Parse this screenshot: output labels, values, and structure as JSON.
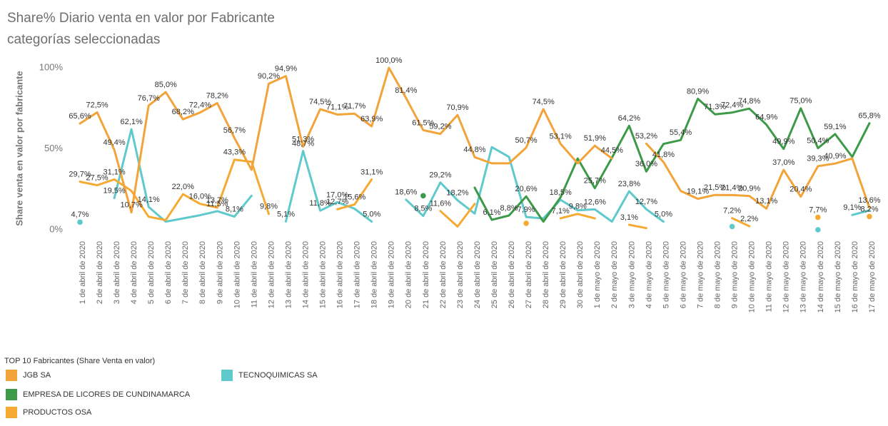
{
  "chart_data": {
    "type": "line",
    "title": "Share% Diario venta en valor por Fabricante",
    "subtitle": "categorías seleccionadas",
    "y_label": "Share venta en valor por fabricante",
    "legend_title": "TOP 10 Fabricantes (Share Venta en valor)",
    "grid": false,
    "ylim": [
      -3,
      102
    ],
    "yticks": [
      {
        "value": 0,
        "label": "0%"
      },
      {
        "value": 50,
        "label": "50%"
      },
      {
        "value": 100,
        "label": "100%"
      }
    ],
    "categories": [
      "1 de abril de 2020",
      "2 de abril de 2020",
      "3 de abril de 2020",
      "4 de abril de 2020",
      "5 de abril de 2020",
      "6 de abril de 2020",
      "7 de abril de 2020",
      "8 de abril de 2020",
      "9 de abril de 2020",
      "10 de abril de 2020",
      "11 de abril de 2020",
      "12 de abril de 2020",
      "13 de abril de 2020",
      "14 de abril de 2020",
      "15 de abril de 2020",
      "16 de abril de 2020",
      "17 de abril de 2020",
      "18 de abril de 2020",
      "19 de abril de 2020",
      "20 de abril de 2020",
      "21 de abril de 2020",
      "22 de abril de 2020",
      "23 de abril de 2020",
      "24 de abril de 2020",
      "25 de abril de 2020",
      "26 de abril de 2020",
      "27 de abril de 2020",
      "28 de abril de 2020",
      "29 de abril de 2020",
      "30 de abril de 2020",
      "1 de mayo de 2020",
      "2 de mayo de 2020",
      "3 de mayo de 2020",
      "4 de mayo de 2020",
      "5 de mayo de 2020",
      "6 de mayo de 2020",
      "7 de mayo de 2020",
      "8 de mayo de 2020",
      "9 de mayo de 2020",
      "10 de mayo de 2020",
      "11 de mayo de 2020",
      "12 de mayo de 2020",
      "13 de mayo de 2020",
      "14 de mayo de 2020",
      "15 de mayo de 2020",
      "16 de mayo de 2020",
      "17 de mayo de 2020"
    ],
    "series": [
      {
        "name": "JGB SA",
        "color": "#f2a43a",
        "values": [
          65.6,
          72.5,
          49.4,
          10.7,
          76.7,
          85.0,
          68.2,
          72.4,
          78.2,
          56.7,
          37,
          90.2,
          94.9,
          51.3,
          74.5,
          71.1,
          71.7,
          63.9,
          100.0,
          81.4,
          61.5,
          59.2,
          70.9,
          44.8,
          41,
          41,
          50.7,
          74.5,
          53.1,
          41,
          51.9,
          44,
          null,
          53.2,
          41.8,
          24,
          19.1,
          21.5,
          21.4,
          20.9,
          13.1,
          37.0,
          20.4,
          39.3,
          40.9,
          44,
          13.6
        ],
        "value_labels": [
          "65,6%",
          "72,5%",
          "49,4%",
          "10,7%",
          "76,7%",
          "85,0%",
          "68,2%",
          "72,4%",
          "78,2%",
          "56,7%",
          null,
          "90,2%",
          "94,9%",
          "51,3%",
          "74,5%",
          "71,1%",
          "71,7%",
          "63,9%",
          "100,0%",
          "81,4%",
          "61,5%",
          "59,2%",
          "70,9%",
          "44,8%",
          null,
          null,
          "50,7%",
          "74,5%",
          "53,1%",
          null,
          "51,9%",
          null,
          null,
          "53,2%",
          "41,8%",
          null,
          "19,1%",
          "21,5%",
          "21,4%",
          "20,9%",
          "13,1%",
          "37,0%",
          "20,4%",
          "39,3%",
          "40,9%",
          null,
          "13,6%"
        ]
      },
      {
        "name": "EMPRESA DE LICORES DE CUNDINAMARCA",
        "color": "#3c9a48",
        "values": [
          null,
          null,
          null,
          null,
          null,
          null,
          null,
          null,
          null,
          null,
          null,
          null,
          null,
          null,
          null,
          null,
          null,
          null,
          null,
          null,
          21,
          null,
          null,
          26,
          6.1,
          8.8,
          20.6,
          5,
          20,
          44,
          25.7,
          44.5,
          64.2,
          36.0,
          53,
          55.4,
          80.9,
          71.3,
          72.4,
          74.8,
          64.9,
          49.9,
          75.0,
          50.4,
          59.1,
          45,
          65.8
        ],
        "value_labels": [
          null,
          null,
          null,
          null,
          null,
          null,
          null,
          null,
          null,
          null,
          null,
          null,
          null,
          null,
          null,
          null,
          null,
          null,
          null,
          null,
          null,
          null,
          null,
          null,
          "6,1%",
          "8,8%",
          "20,6%",
          null,
          null,
          null,
          "25,7%",
          "44,5%",
          "64,2%",
          "36,0%",
          null,
          "55,4%",
          "80,9%",
          "71,3%",
          "72,4%",
          "74,8%",
          "64,9%",
          "49,9%",
          "75,0%",
          "50,4%",
          "59,1%",
          null,
          "65,8%"
        ]
      },
      {
        "name": "PRODUCTOS OSA",
        "color": "#f5ab33",
        "values": [
          29.7,
          27.5,
          31.1,
          24,
          8,
          6,
          22.0,
          16.0,
          13.7,
          43.3,
          42,
          9.8,
          null,
          null,
          null,
          12.7,
          15.6,
          31.1,
          null,
          null,
          null,
          11.6,
          2,
          16,
          null,
          null,
          4,
          null,
          7.1,
          9.8,
          7,
          null,
          3.1,
          1,
          null,
          null,
          null,
          null,
          7.2,
          2.2,
          null,
          null,
          null,
          7.7,
          null,
          null,
          8.2
        ],
        "value_labels": [
          "29,7%",
          "27,5%",
          "31,1%",
          null,
          null,
          null,
          "22,0%",
          "16,0%",
          "13,7%",
          "43,3%",
          null,
          "9,8%",
          null,
          null,
          null,
          "12,7%",
          "15,6%",
          "31,1%",
          null,
          null,
          null,
          "11,6%",
          null,
          null,
          null,
          null,
          null,
          null,
          "7,1%",
          "9,8%",
          null,
          null,
          "3,1%",
          null,
          null,
          null,
          null,
          null,
          "7,2%",
          "2,2%",
          null,
          null,
          null,
          "7,7%",
          null,
          null,
          "8,2%"
        ]
      },
      {
        "name": "TECNOQUIMICAS SA",
        "color": "#5fc9cc",
        "values": [
          4.7,
          null,
          19.5,
          62.1,
          14.1,
          5,
          7,
          9,
          11.5,
          8.1,
          21,
          null,
          5.1,
          48.7,
          11.8,
          17.0,
          13,
          5.0,
          null,
          18.6,
          8.5,
          29.2,
          18.2,
          10,
          51,
          45,
          7.9,
          7,
          18.5,
          12,
          12.6,
          5,
          23.8,
          12.7,
          5.0,
          null,
          null,
          null,
          2,
          null,
          null,
          null,
          null,
          0,
          null,
          9.1,
          12
        ],
        "value_labels": [
          "4,7%",
          null,
          "19,5%",
          "62,1%",
          "14,1%",
          null,
          null,
          null,
          "11,5%",
          "8,1%",
          null,
          null,
          "5,1%",
          "48,7%",
          "11,8%",
          "17,0%",
          null,
          "5,0%",
          null,
          "18,6%",
          "8,5%",
          "29,2%",
          "18,2%",
          null,
          null,
          null,
          "7,9%",
          null,
          "18,5%",
          null,
          "12,6%",
          null,
          "23,8%",
          "12,7%",
          "5,0%",
          null,
          null,
          null,
          null,
          null,
          null,
          null,
          null,
          null,
          null,
          "9,1%",
          null
        ]
      }
    ]
  }
}
